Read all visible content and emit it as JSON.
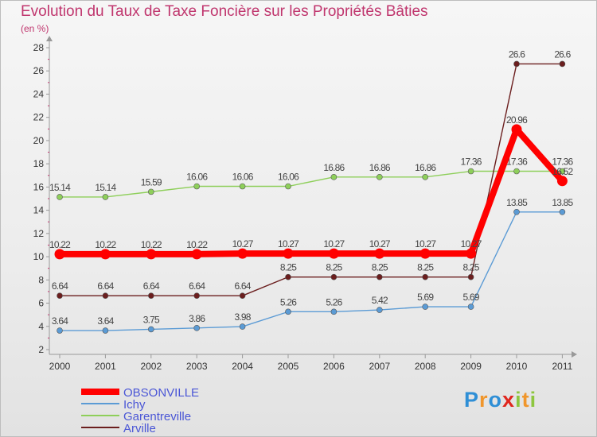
{
  "title": "Evolution du Taux de Taxe Foncière sur les Propriétés Bâties",
  "subtitle": "(en %)",
  "logo": {
    "letters": [
      "P",
      "r",
      "o",
      "x",
      "i",
      "t",
      "i"
    ],
    "colors": [
      "#2f8fd6",
      "#f0962c",
      "#2f8fd6",
      "#e0261e",
      "#8dc63f",
      "#f0962c",
      "#8dc63f"
    ]
  },
  "colors": {
    "title": "#c0366e",
    "axis": "#999999",
    "legend_text": "#4a56d6"
  },
  "chart_data": {
    "type": "line",
    "title": "Evolution du Taux de Taxe Foncière sur les Propriétés Bâties",
    "ylabel": "(en %)",
    "xlabel": "",
    "x": [
      "2000",
      "2001",
      "2002",
      "2003",
      "2004",
      "2005",
      "2006",
      "2007",
      "2008",
      "2009",
      "2010",
      "2011"
    ],
    "ylim": [
      2,
      28
    ],
    "yticks": [
      2,
      4,
      6,
      8,
      10,
      12,
      14,
      16,
      18,
      20,
      22,
      24,
      26,
      28
    ],
    "grid": false,
    "legend_position": "bottom-left",
    "series": [
      {
        "name": "Garentreville",
        "color": "#8ecf5a",
        "values": [
          15.14,
          15.14,
          15.59,
          16.06,
          16.06,
          16.06,
          16.86,
          16.86,
          16.86,
          17.36,
          17.36,
          17.36
        ],
        "labels": [
          "15.14",
          "15.14",
          "15.59",
          "16.06",
          "16.06",
          "16.06",
          "16.86",
          "16.86",
          "16.86",
          "17.36",
          "17.36",
          "17.36"
        ]
      },
      {
        "name": "Ichy",
        "color": "#5b9bd5",
        "values": [
          3.64,
          3.64,
          3.75,
          3.86,
          3.98,
          5.26,
          5.26,
          5.42,
          5.69,
          5.69,
          13.85,
          13.85
        ],
        "labels": [
          "3.64",
          "3.64",
          "3.75",
          "3.86",
          "3.98",
          "5.26",
          "5.26",
          "5.42",
          "5.69",
          "5.69",
          "13.85",
          "13.85"
        ]
      },
      {
        "name": "Arville",
        "color": "#6b1e1e",
        "values": [
          6.64,
          6.64,
          6.64,
          6.64,
          6.64,
          8.25,
          8.25,
          8.25,
          8.25,
          8.25,
          26.6,
          26.6
        ],
        "labels": [
          "6.64",
          "6.64",
          "6.64",
          "6.64",
          "6.64",
          "8.25",
          "8.25",
          "8.25",
          "8.25",
          "8.25",
          "26.6",
          "26.6"
        ]
      },
      {
        "name": "OBSONVILLE",
        "color": "#ff0000",
        "values": [
          10.22,
          10.22,
          10.22,
          10.22,
          10.27,
          10.27,
          10.27,
          10.27,
          10.27,
          10.27,
          20.96,
          16.52
        ],
        "labels": [
          "10.22",
          "10.22",
          "10.22",
          "10.22",
          "10.27",
          "10.27",
          "10.27",
          "10.27",
          "10.27",
          "10.27",
          "20.96",
          "16.52"
        ]
      }
    ],
    "legend": [
      "OBSONVILLE",
      "Ichy",
      "Garentreville",
      "Arville"
    ]
  }
}
